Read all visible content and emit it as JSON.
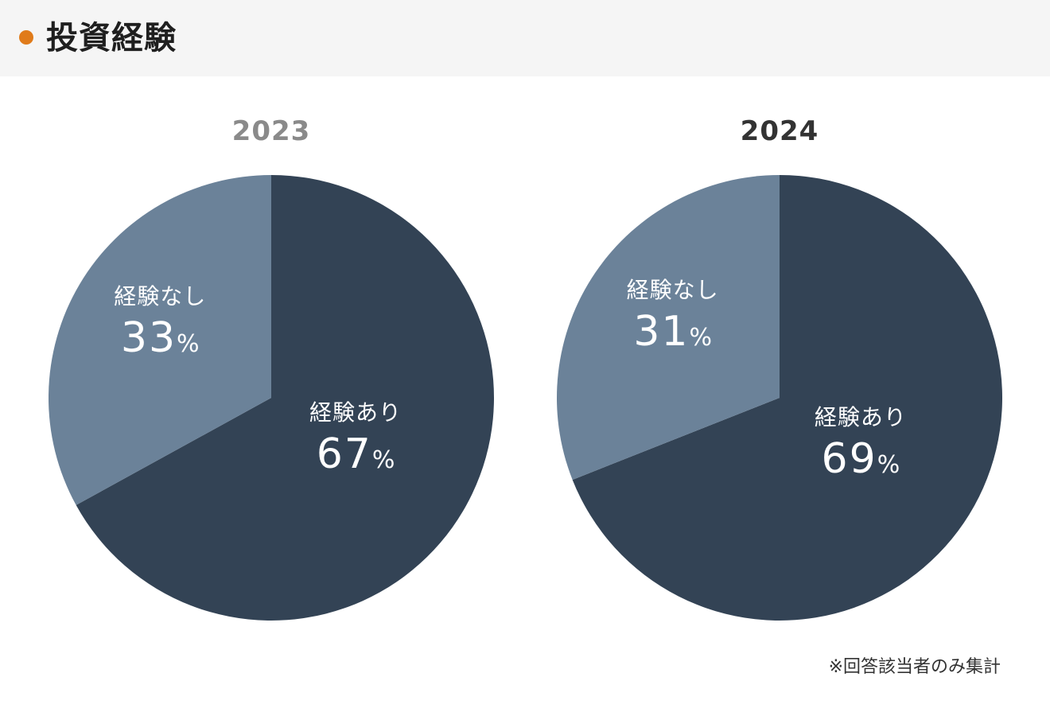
{
  "header": {
    "title": "投資経験",
    "dot_color": "#e07b1a"
  },
  "chart_data": [
    {
      "type": "pie",
      "title": "2023",
      "title_color": "#8a8a8a",
      "slices": [
        {
          "label": "経験あり",
          "value": 67,
          "unit": "%",
          "color": "#334355"
        },
        {
          "label": "経験なし",
          "value": 33,
          "unit": "%",
          "color": "#6b8299"
        }
      ]
    },
    {
      "type": "pie",
      "title": "2024",
      "title_color": "#333333",
      "slices": [
        {
          "label": "経験あり",
          "value": 69,
          "unit": "%",
          "color": "#334355"
        },
        {
          "label": "経験なし",
          "value": 31,
          "unit": "%",
          "color": "#6b8299"
        }
      ]
    }
  ],
  "footnote": "※回答該当者のみ集計"
}
